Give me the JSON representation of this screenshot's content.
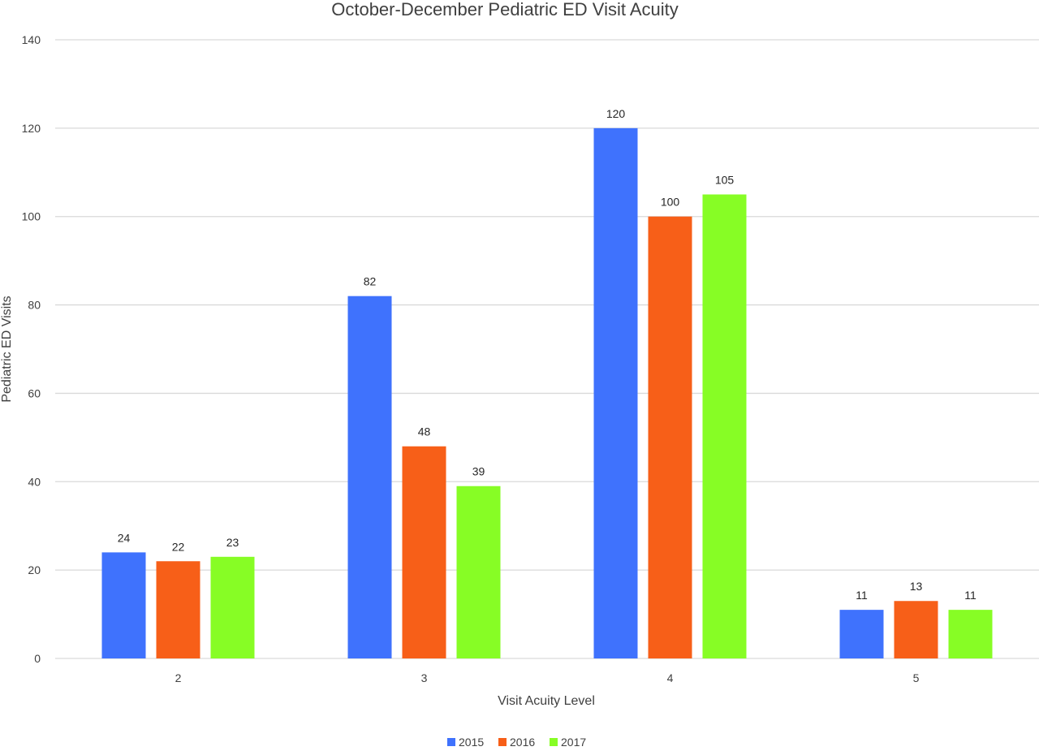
{
  "chart_data": {
    "type": "bar",
    "title": "October-December Pediatric ED Visit Acuity",
    "xlabel": "Visit Acuity Level",
    "ylabel": "Pediatric ED Visits",
    "categories": [
      "2",
      "3",
      "4",
      "5"
    ],
    "series": [
      {
        "name": "2015",
        "color": "#3f72fd",
        "values": [
          24,
          82,
          120,
          11
        ]
      },
      {
        "name": "2016",
        "color": "#f75f18",
        "values": [
          22,
          48,
          100,
          13
        ]
      },
      {
        "name": "2017",
        "color": "#87fd25",
        "values": [
          23,
          39,
          105,
          11
        ]
      }
    ],
    "ylim": [
      0,
      140
    ],
    "yticks": [
      0,
      20,
      40,
      60,
      80,
      100,
      120,
      140
    ],
    "grid": true,
    "legend_position": "bottom-center",
    "data_labels": true
  }
}
